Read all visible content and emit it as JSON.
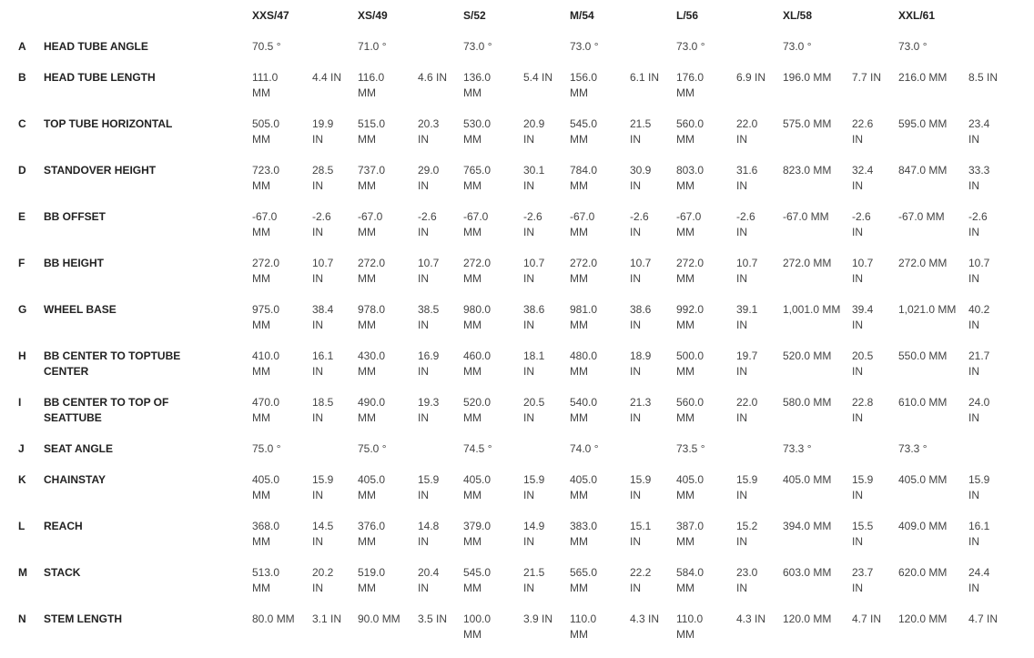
{
  "sizes": [
    "XXS/47",
    "XS/49",
    "S/52",
    "M/54",
    "L/56",
    "XL/58",
    "XXL/61"
  ],
  "rows": [
    {
      "letter": "A",
      "label": "HEAD TUBE ANGLE",
      "cells": [
        [
          "70.5 °",
          ""
        ],
        [
          "71.0 °",
          ""
        ],
        [
          "73.0 °",
          ""
        ],
        [
          "73.0 °",
          ""
        ],
        [
          "73.0 °",
          ""
        ],
        [
          "73.0 °",
          ""
        ],
        [
          "73.0 °",
          ""
        ]
      ]
    },
    {
      "letter": "B",
      "label": "HEAD TUBE LENGTH",
      "cells": [
        [
          "111.0 MM",
          "4.4 IN"
        ],
        [
          "116.0 MM",
          "4.6 IN"
        ],
        [
          "136.0 MM",
          "5.4 IN"
        ],
        [
          "156.0 MM",
          "6.1 IN"
        ],
        [
          "176.0 MM",
          "6.9 IN"
        ],
        [
          "196.0 MM",
          "7.7 IN"
        ],
        [
          "216.0 MM",
          "8.5 IN"
        ]
      ]
    },
    {
      "letter": "C",
      "label": "TOP TUBE HORIZONTAL",
      "cells": [
        [
          "505.0 MM",
          "19.9 IN"
        ],
        [
          "515.0 MM",
          "20.3 IN"
        ],
        [
          "530.0 MM",
          "20.9 IN"
        ],
        [
          "545.0 MM",
          "21.5 IN"
        ],
        [
          "560.0 MM",
          "22.0 IN"
        ],
        [
          "575.0 MM",
          "22.6 IN"
        ],
        [
          "595.0 MM",
          "23.4 IN"
        ]
      ]
    },
    {
      "letter": "D",
      "label": "STANDOVER HEIGHT",
      "cells": [
        [
          "723.0 MM",
          "28.5 IN"
        ],
        [
          "737.0 MM",
          "29.0 IN"
        ],
        [
          "765.0 MM",
          "30.1 IN"
        ],
        [
          "784.0 MM",
          "30.9 IN"
        ],
        [
          "803.0 MM",
          "31.6 IN"
        ],
        [
          "823.0 MM",
          "32.4 IN"
        ],
        [
          "847.0 MM",
          "33.3 IN"
        ]
      ]
    },
    {
      "letter": "E",
      "label": "BB OFFSET",
      "cells": [
        [
          "-67.0 MM",
          "-2.6 IN"
        ],
        [
          "-67.0 MM",
          "-2.6 IN"
        ],
        [
          "-67.0 MM",
          "-2.6 IN"
        ],
        [
          "-67.0 MM",
          "-2.6 IN"
        ],
        [
          "-67.0 MM",
          "-2.6 IN"
        ],
        [
          "-67.0 MM",
          "-2.6 IN"
        ],
        [
          "-67.0 MM",
          "-2.6 IN"
        ]
      ]
    },
    {
      "letter": "F",
      "label": "BB HEIGHT",
      "cells": [
        [
          "272.0 MM",
          "10.7 IN"
        ],
        [
          "272.0 MM",
          "10.7 IN"
        ],
        [
          "272.0 MM",
          "10.7 IN"
        ],
        [
          "272.0 MM",
          "10.7 IN"
        ],
        [
          "272.0 MM",
          "10.7 IN"
        ],
        [
          "272.0 MM",
          "10.7 IN"
        ],
        [
          "272.0 MM",
          "10.7 IN"
        ]
      ]
    },
    {
      "letter": "G",
      "label": "WHEEL BASE",
      "cells": [
        [
          "975.0 MM",
          "38.4 IN"
        ],
        [
          "978.0 MM",
          "38.5 IN"
        ],
        [
          "980.0 MM",
          "38.6 IN"
        ],
        [
          "981.0 MM",
          "38.6 IN"
        ],
        [
          "992.0 MM",
          "39.1 IN"
        ],
        [
          "1,001.0 MM",
          "39.4 IN"
        ],
        [
          "1,021.0 MM",
          "40.2 IN"
        ]
      ]
    },
    {
      "letter": "H",
      "label": "BB CENTER TO TOPTUBE CENTER",
      "cells": [
        [
          "410.0 MM",
          "16.1 IN"
        ],
        [
          "430.0 MM",
          "16.9 IN"
        ],
        [
          "460.0 MM",
          "18.1 IN"
        ],
        [
          "480.0 MM",
          "18.9 IN"
        ],
        [
          "500.0 MM",
          "19.7 IN"
        ],
        [
          "520.0 MM",
          "20.5 IN"
        ],
        [
          "550.0 MM",
          "21.7 IN"
        ]
      ]
    },
    {
      "letter": "I",
      "label": "BB CENTER TO TOP OF SEATTUBE",
      "cells": [
        [
          "470.0 MM",
          "18.5 IN"
        ],
        [
          "490.0 MM",
          "19.3 IN"
        ],
        [
          "520.0 MM",
          "20.5 IN"
        ],
        [
          "540.0 MM",
          "21.3 IN"
        ],
        [
          "560.0 MM",
          "22.0 IN"
        ],
        [
          "580.0 MM",
          "22.8 IN"
        ],
        [
          "610.0 MM",
          "24.0 IN"
        ]
      ]
    },
    {
      "letter": "J",
      "label": "SEAT ANGLE",
      "cells": [
        [
          "75.0 °",
          ""
        ],
        [
          "75.0 °",
          ""
        ],
        [
          "74.5 °",
          ""
        ],
        [
          "74.0 °",
          ""
        ],
        [
          "73.5 °",
          ""
        ],
        [
          "73.3 °",
          ""
        ],
        [
          "73.3 °",
          ""
        ]
      ]
    },
    {
      "letter": "K",
      "label": "CHAINSTAY",
      "cells": [
        [
          "405.0 MM",
          "15.9 IN"
        ],
        [
          "405.0 MM",
          "15.9 IN"
        ],
        [
          "405.0 MM",
          "15.9 IN"
        ],
        [
          "405.0 MM",
          "15.9 IN"
        ],
        [
          "405.0 MM",
          "15.9 IN"
        ],
        [
          "405.0 MM",
          "15.9 IN"
        ],
        [
          "405.0 MM",
          "15.9 IN"
        ]
      ]
    },
    {
      "letter": "L",
      "label": "REACH",
      "cells": [
        [
          "368.0 MM",
          "14.5 IN"
        ],
        [
          "376.0 MM",
          "14.8 IN"
        ],
        [
          "379.0 MM",
          "14.9 IN"
        ],
        [
          "383.0 MM",
          "15.1 IN"
        ],
        [
          "387.0 MM",
          "15.2 IN"
        ],
        [
          "394.0 MM",
          "15.5 IN"
        ],
        [
          "409.0 MM",
          "16.1 IN"
        ]
      ]
    },
    {
      "letter": "M",
      "label": "STACK",
      "cells": [
        [
          "513.0 MM",
          "20.2 IN"
        ],
        [
          "519.0 MM",
          "20.4 IN"
        ],
        [
          "545.0 MM",
          "21.5 IN"
        ],
        [
          "565.0 MM",
          "22.2 IN"
        ],
        [
          "584.0 MM",
          "23.0 IN"
        ],
        [
          "603.0 MM",
          "23.7 IN"
        ],
        [
          "620.0 MM",
          "24.4 IN"
        ]
      ]
    },
    {
      "letter": "N",
      "label": "STEM LENGTH",
      "cells": [
        [
          "80.0 MM",
          "3.1 IN"
        ],
        [
          "90.0 MM",
          "3.5 IN"
        ],
        [
          "100.0 MM",
          "3.9 IN"
        ],
        [
          "110.0 MM",
          "4.3 IN"
        ],
        [
          "110.0 MM",
          "4.3 IN"
        ],
        [
          "120.0 MM",
          "4.7 IN"
        ],
        [
          "120.0 MM",
          "4.7 IN"
        ]
      ]
    }
  ]
}
